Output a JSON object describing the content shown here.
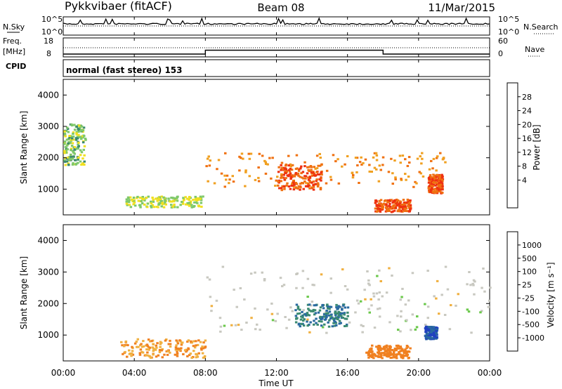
{
  "header": {
    "station": "Pykkvibaer (fitACF)",
    "beam": "Beam 08",
    "date": "11/Mar/2015"
  },
  "noise_panel": {
    "left_label": "N.Sky",
    "right_label": "N.Search",
    "y_top": "10^5",
    "y_bottom": "10^0"
  },
  "freq_panel": {
    "left_label_1": "Freq.",
    "left_label_2": "[MHz]",
    "left_top": "18",
    "left_bottom": "8",
    "right_label": "Nave",
    "right_top": "60",
    "right_bottom": "0"
  },
  "cpid": {
    "label": "CPID",
    "text": "normal (fast stereo) 153"
  },
  "x_axis": {
    "ticks": [
      "00:00",
      "04:00",
      "08:00",
      "12:00",
      "16:00",
      "20:00",
      "00:00"
    ],
    "label": "Time UT"
  },
  "power_panel": {
    "ylabel": "Slant Range [km]",
    "yticks": [
      "1000",
      "2000",
      "3000",
      "4000"
    ],
    "cbar_label": "Power [dB]",
    "cbar_ticks": [
      "4",
      "8",
      "12",
      "16",
      "20",
      "24",
      "28"
    ],
    "cbar_colors": [
      "#1f1fff",
      "#2456b8",
      "#3c8a6e",
      "#7ec86a",
      "#f0e020",
      "#f0a020",
      "#f07010",
      "#ee3010",
      "#dd0000"
    ]
  },
  "velocity_panel": {
    "ylabel": "Slant Range [km]",
    "yticks": [
      "1000",
      "2000",
      "3000",
      "4000"
    ],
    "cbar_label": "Velocity [m s⁻¹]",
    "cbar_ticks": [
      "1000",
      "500",
      "100",
      "25",
      "-25",
      "-100",
      "-500",
      "-1000"
    ],
    "cbar_colors": [
      "#2040c0",
      "#2a6aa0",
      "#3a8a70",
      "#6ac84a",
      "#c8c8c0",
      "#f0b040",
      "#f08020",
      "#f05010",
      "#e00000"
    ]
  },
  "chart_data": {
    "type": "heatmap",
    "xlabel": "Time UT",
    "ylabel": "Slant Range [km]",
    "xlim": [
      0,
      24
    ],
    "ylim": [
      180,
      4500
    ],
    "freq_MHz_segments": [
      {
        "from": 0,
        "to": 8,
        "value": 9.5
      },
      {
        "from": 8,
        "to": 18,
        "value": 11.5
      },
      {
        "from": 18,
        "to": 24,
        "value": 9.5
      }
    ],
    "power_dB_regions": [
      {
        "t0": 0,
        "t1": 1.2,
        "r0": 1800,
        "r1": 3100,
        "level": 14
      },
      {
        "t0": 3.5,
        "t1": 7.8,
        "r0": 450,
        "r1": 800,
        "level": 16
      },
      {
        "t0": 8.0,
        "t1": 21.5,
        "r0": 1100,
        "r1": 2200,
        "level": 24
      },
      {
        "t0": 12.0,
        "t1": 14.5,
        "r0": 1000,
        "r1": 1800,
        "level": 28
      },
      {
        "t0": 17.5,
        "t1": 19.5,
        "r0": 300,
        "r1": 700,
        "level": 28
      },
      {
        "t0": 20.5,
        "t1": 21.3,
        "r0": 900,
        "r1": 1500,
        "level": 28
      }
    ],
    "velocity_regions": [
      {
        "t0": 3.2,
        "t1": 8.0,
        "r0": 300,
        "r1": 900,
        "value": -100
      },
      {
        "t0": 8.0,
        "t1": 24,
        "r0": 1100,
        "r1": 3200,
        "value": 0
      },
      {
        "t0": 13.0,
        "t1": 16.0,
        "r0": 1300,
        "r1": 2000,
        "value": 500
      },
      {
        "t0": 17.0,
        "t1": 19.5,
        "r0": 300,
        "r1": 700,
        "value": -300
      },
      {
        "t0": 20.3,
        "t1": 21.0,
        "r0": 900,
        "r1": 1300,
        "value": 1000
      }
    ]
  }
}
